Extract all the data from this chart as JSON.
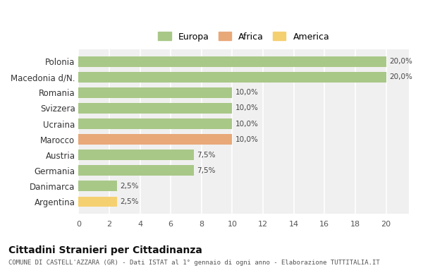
{
  "categories": [
    "Polonia",
    "Macedonia d/N.",
    "Romania",
    "Svizzera",
    "Ucraina",
    "Marocco",
    "Austria",
    "Germania",
    "Danimarca",
    "Argentina"
  ],
  "values": [
    20.0,
    20.0,
    10.0,
    10.0,
    10.0,
    10.0,
    7.5,
    7.5,
    2.5,
    2.5
  ],
  "colors": [
    "#a8c887",
    "#a8c887",
    "#a8c887",
    "#a8c887",
    "#a8c887",
    "#e8a878",
    "#a8c887",
    "#a8c887",
    "#a8c887",
    "#f5d070"
  ],
  "labels": [
    "20,0%",
    "20,0%",
    "10,0%",
    "10,0%",
    "10,0%",
    "10,0%",
    "7,5%",
    "7,5%",
    "2,5%",
    "2,5%"
  ],
  "xlim": [
    0,
    21.5
  ],
  "xticks": [
    0,
    2,
    4,
    6,
    8,
    10,
    12,
    14,
    16,
    18,
    20
  ],
  "legend_labels": [
    "Europa",
    "Africa",
    "America"
  ],
  "legend_colors": [
    "#a8c887",
    "#e8a878",
    "#f5d070"
  ],
  "title": "Cittadini Stranieri per Cittadinanza",
  "subtitle": "COMUNE DI CASTELL'AZZARA (GR) - Dati ISTAT al 1° gennaio di ogni anno - Elaborazione TUTTITALIA.IT",
  "background_color": "#ffffff",
  "bar_background": "#f0f0f0",
  "grid_color": "#ffffff"
}
